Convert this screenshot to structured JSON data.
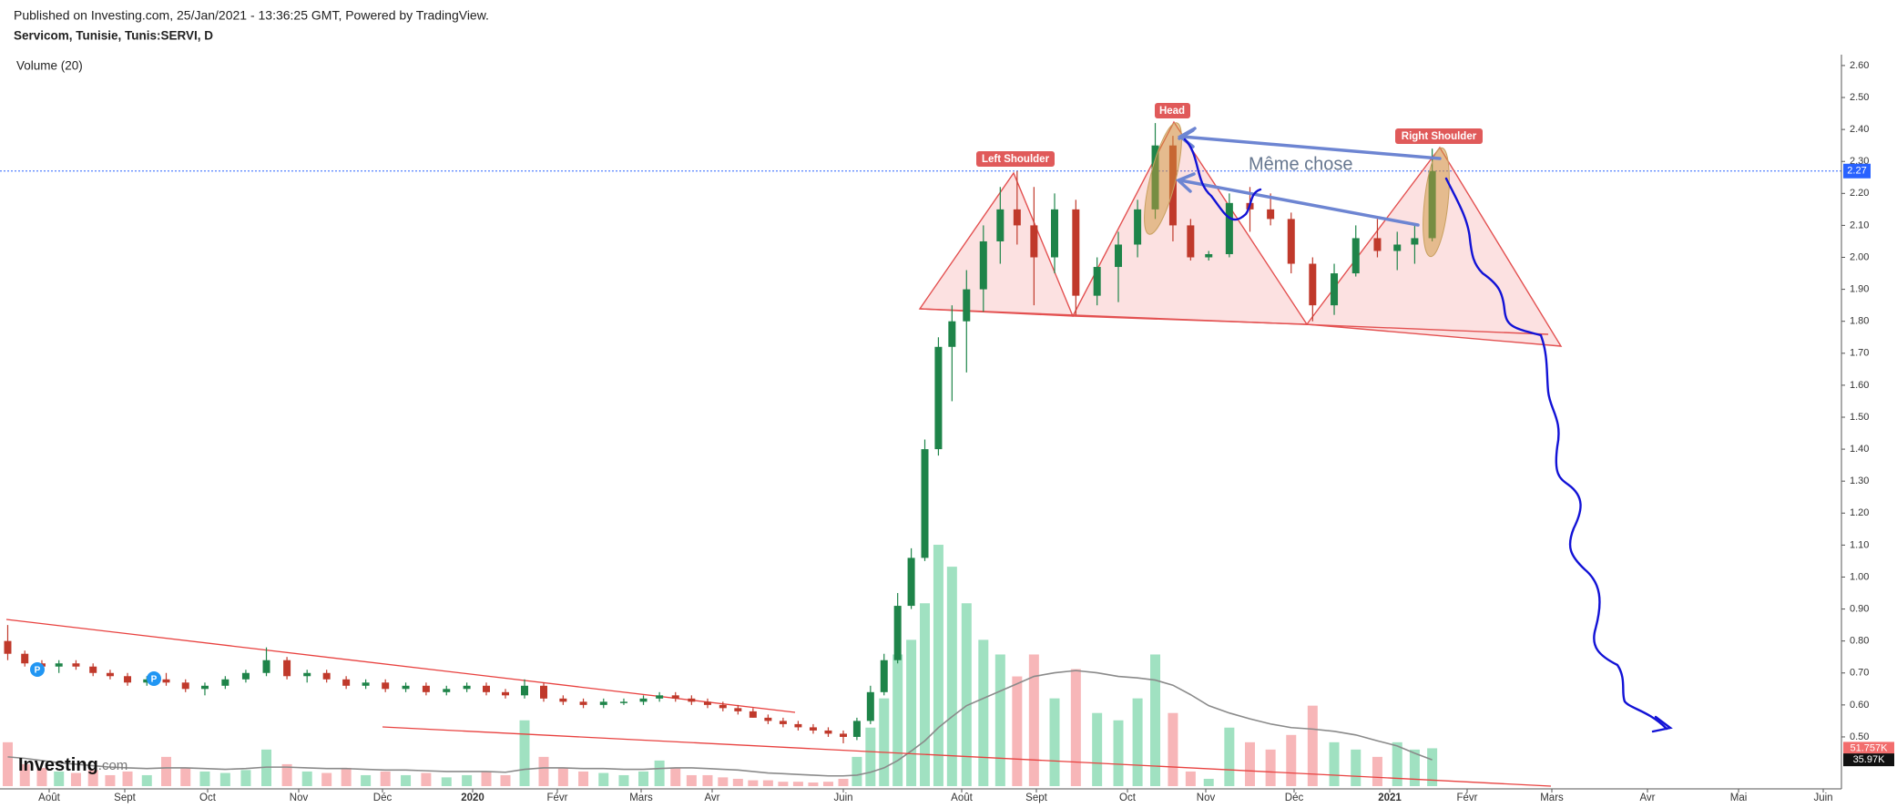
{
  "header": {
    "published": "Published on Investing.com, 25/Jan/2021 - 13:36:25 GMT, Powered by TradingView.",
    "symbol": "Servicom, Tunisie, Tunis:SERVI, D"
  },
  "chart_data": {
    "type": "candlestick",
    "x": [
      "2019-07-15",
      "2019-07-22",
      "2019-07-29",
      "2019-08-05",
      "2019-08-12",
      "2019-08-19",
      "2019-08-26",
      "2019-09-02",
      "2019-09-09",
      "2019-09-16",
      "2019-09-23",
      "2019-09-30",
      "2019-10-07",
      "2019-10-14",
      "2019-10-21",
      "2019-10-28",
      "2019-11-04",
      "2019-11-11",
      "2019-11-18",
      "2019-11-25",
      "2019-12-02",
      "2019-12-09",
      "2019-12-16",
      "2019-12-23",
      "2019-12-30",
      "2020-01-06",
      "2020-01-13",
      "2020-01-20",
      "2020-01-27",
      "2020-02-03",
      "2020-02-10",
      "2020-02-17",
      "2020-02-24",
      "2020-03-02",
      "2020-03-09",
      "2020-03-16",
      "2020-03-23",
      "2020-03-30",
      "2020-04-06",
      "2020-04-13",
      "2020-04-20",
      "2020-04-27",
      "2020-05-04",
      "2020-05-11",
      "2020-05-18",
      "2020-05-25",
      "2020-06-01",
      "2020-06-08",
      "2020-06-15",
      "2020-06-22",
      "2020-06-29",
      "2020-07-06",
      "2020-07-13",
      "2020-07-20",
      "2020-07-27",
      "2020-08-03",
      "2020-08-10",
      "2020-08-17",
      "2020-08-24",
      "2020-08-31",
      "2020-09-07",
      "2020-09-14",
      "2020-09-21",
      "2020-09-28",
      "2020-10-05",
      "2020-10-12",
      "2020-10-19",
      "2020-10-26",
      "2020-11-02",
      "2020-11-09",
      "2020-11-16",
      "2020-11-23",
      "2020-11-30",
      "2020-12-07",
      "2020-12-14",
      "2020-12-21",
      "2020-12-28",
      "2021-01-04",
      "2021-01-11",
      "2021-01-18"
    ],
    "open": [
      0.8,
      0.76,
      0.73,
      0.72,
      0.73,
      0.72,
      0.7,
      0.69,
      0.67,
      0.68,
      0.67,
      0.65,
      0.66,
      0.68,
      0.7,
      0.74,
      0.69,
      0.7,
      0.68,
      0.66,
      0.67,
      0.65,
      0.66,
      0.64,
      0.65,
      0.66,
      0.64,
      0.63,
      0.66,
      0.62,
      0.61,
      0.6,
      0.61,
      0.61,
      0.62,
      0.63,
      0.62,
      0.61,
      0.6,
      0.59,
      0.58,
      0.56,
      0.55,
      0.54,
      0.53,
      0.52,
      0.51,
      0.5,
      0.55,
      0.64,
      0.74,
      0.91,
      1.06,
      1.4,
      1.72,
      1.8,
      1.9,
      2.05,
      2.15,
      2.1,
      2.0,
      2.15,
      1.88,
      1.97,
      2.04,
      2.15,
      2.35,
      2.1,
      2.0,
      2.01,
      2.17,
      2.15,
      2.12,
      1.98,
      1.85,
      1.95,
      2.06,
      2.02,
      2.04,
      2.06
    ],
    "high": [
      0.85,
      0.77,
      0.74,
      0.74,
      0.74,
      0.73,
      0.71,
      0.7,
      0.69,
      0.7,
      0.68,
      0.67,
      0.69,
      0.71,
      0.78,
      0.75,
      0.71,
      0.71,
      0.69,
      0.68,
      0.68,
      0.67,
      0.67,
      0.66,
      0.67,
      0.67,
      0.65,
      0.68,
      0.67,
      0.63,
      0.62,
      0.62,
      0.62,
      0.63,
      0.64,
      0.64,
      0.63,
      0.62,
      0.61,
      0.6,
      0.59,
      0.57,
      0.56,
      0.55,
      0.54,
      0.53,
      0.52,
      0.56,
      0.66,
      0.76,
      0.95,
      1.09,
      1.43,
      1.75,
      1.85,
      1.96,
      2.1,
      2.22,
      2.27,
      2.22,
      2.2,
      2.18,
      2.0,
      2.08,
      2.18,
      2.42,
      2.38,
      2.12,
      2.02,
      2.2,
      2.22,
      2.2,
      2.14,
      2.0,
      1.98,
      2.1,
      2.12,
      2.08,
      2.1,
      2.34
    ],
    "low": [
      0.74,
      0.72,
      0.7,
      0.7,
      0.71,
      0.69,
      0.68,
      0.66,
      0.66,
      0.66,
      0.64,
      0.63,
      0.65,
      0.67,
      0.69,
      0.68,
      0.67,
      0.67,
      0.65,
      0.65,
      0.64,
      0.64,
      0.63,
      0.63,
      0.64,
      0.63,
      0.62,
      0.62,
      0.61,
      0.6,
      0.59,
      0.59,
      0.6,
      0.6,
      0.61,
      0.61,
      0.6,
      0.59,
      0.58,
      0.57,
      0.56,
      0.54,
      0.53,
      0.52,
      0.51,
      0.5,
      0.48,
      0.49,
      0.54,
      0.63,
      0.73,
      0.9,
      1.05,
      1.38,
      1.55,
      1.64,
      1.83,
      1.98,
      2.04,
      1.85,
      1.95,
      1.82,
      1.85,
      1.86,
      2.0,
      2.12,
      2.05,
      1.99,
      1.99,
      2.0,
      2.08,
      2.1,
      1.95,
      1.8,
      1.82,
      1.94,
      2.0,
      1.96,
      1.98,
      2.05
    ],
    "close": [
      0.76,
      0.73,
      0.72,
      0.73,
      0.72,
      0.7,
      0.69,
      0.67,
      0.68,
      0.67,
      0.65,
      0.66,
      0.68,
      0.7,
      0.74,
      0.69,
      0.7,
      0.68,
      0.66,
      0.67,
      0.65,
      0.66,
      0.64,
      0.65,
      0.66,
      0.64,
      0.63,
      0.66,
      0.62,
      0.61,
      0.6,
      0.61,
      0.61,
      0.62,
      0.63,
      0.62,
      0.61,
      0.6,
      0.59,
      0.58,
      0.56,
      0.55,
      0.54,
      0.53,
      0.52,
      0.51,
      0.5,
      0.55,
      0.64,
      0.74,
      0.91,
      1.06,
      1.4,
      1.72,
      1.8,
      1.9,
      2.05,
      2.15,
      2.1,
      2.0,
      2.15,
      1.88,
      1.97,
      2.04,
      2.15,
      2.35,
      2.1,
      2.0,
      2.01,
      2.17,
      2.15,
      2.12,
      1.98,
      1.85,
      1.95,
      2.06,
      2.02,
      2.04,
      2.06,
      2.27
    ],
    "up_color": "#1e8449",
    "down_color": "#c0392b",
    "ylim": [
      0.346,
      2.634
    ],
    "yticks": [
      {
        "value": 0.5,
        "label": "0.50"
      },
      {
        "value": 0.6,
        "label": "0.60"
      },
      {
        "value": 0.7,
        "label": "0.70"
      },
      {
        "value": 0.8,
        "label": "0.80"
      },
      {
        "value": 0.9,
        "label": "0.90"
      },
      {
        "value": 1.0,
        "label": "1.00"
      },
      {
        "value": 1.1,
        "label": "1.10"
      },
      {
        "value": 1.2,
        "label": "1.20"
      },
      {
        "value": 1.3,
        "label": "1.30"
      },
      {
        "value": 1.4,
        "label": "1.40"
      },
      {
        "value": 1.5,
        "label": "1.50"
      },
      {
        "value": 1.6,
        "label": "1.60"
      },
      {
        "value": 1.7,
        "label": "1.70"
      },
      {
        "value": 1.8,
        "label": "1.80"
      },
      {
        "value": 1.9,
        "label": "1.90"
      },
      {
        "value": 2.0,
        "label": "2.00"
      },
      {
        "value": 2.1,
        "label": "2.10"
      },
      {
        "value": 2.2,
        "label": "2.20"
      },
      {
        "value": 2.3,
        "label": "2.30"
      },
      {
        "value": 2.4,
        "label": "2.40"
      },
      {
        "value": 2.5,
        "label": "2.50"
      },
      {
        "value": 2.6,
        "label": "2.60"
      }
    ],
    "xticks": [
      {
        "value": "2019-08-01",
        "label": "Août"
      },
      {
        "value": "2019-09-01",
        "label": "Sept"
      },
      {
        "value": "2019-10-01",
        "label": "Oct"
      },
      {
        "value": "2019-11-01",
        "label": "Nov"
      },
      {
        "value": "2019-12-01",
        "label": "Déc"
      },
      {
        "value": "2020-01-01",
        "label": "2020"
      },
      {
        "value": "2020-02-01",
        "label": "Févr"
      },
      {
        "value": "2020-03-01",
        "label": "Mars"
      },
      {
        "value": "2020-04-01",
        "label": "Avr"
      },
      {
        "value": "2020-06-01",
        "label": "Juin"
      },
      {
        "value": "2020-08-01",
        "label": "Août"
      },
      {
        "value": "2020-09-01",
        "label": "Sept"
      },
      {
        "value": "2020-10-01",
        "label": "Oct"
      },
      {
        "value": "2020-11-01",
        "label": "Nov"
      },
      {
        "value": "2020-12-01",
        "label": "Déc"
      },
      {
        "value": "2021-01-01",
        "label": "2021"
      },
      {
        "value": "2021-02-01",
        "label": "Févr"
      },
      {
        "value": "2021-03-01",
        "label": "Mars"
      },
      {
        "value": "2021-04-01",
        "label": "Avr"
      },
      {
        "value": "2021-05-01",
        "label": "Mai"
      },
      {
        "value": "2021-06-01",
        "label": "Juin"
      }
    ],
    "last_price": 2.27,
    "last_price_color": "#2962ff",
    "volume": {
      "title": "Volume (20)",
      "values": [
        60000,
        30000,
        25000,
        20000,
        18000,
        22000,
        15000,
        20000,
        15000,
        40000,
        25000,
        20000,
        18000,
        22000,
        50000,
        30000,
        20000,
        18000,
        25000,
        15000,
        20000,
        15000,
        18000,
        12000,
        15000,
        20000,
        15000,
        90000,
        40000,
        25000,
        20000,
        18000,
        15000,
        20000,
        35000,
        25000,
        15000,
        15000,
        12000,
        10000,
        8000,
        8000,
        6000,
        6000,
        5000,
        6000,
        10000,
        40000,
        80000,
        120000,
        180000,
        200000,
        250000,
        330000,
        300000,
        250000,
        200000,
        180000,
        150000,
        180000,
        120000,
        160000,
        100000,
        90000,
        120000,
        180000,
        100000,
        20000,
        10000,
        80000,
        60000,
        50000,
        70000,
        110000,
        60000,
        50000,
        40000,
        60000,
        50000,
        51757
      ],
      "ma": [
        40000,
        38000,
        35000,
        32000,
        30000,
        28000,
        26000,
        25000,
        24000,
        25000,
        25000,
        24000,
        23000,
        24000,
        26000,
        26000,
        25000,
        24000,
        24000,
        23000,
        22000,
        22000,
        21000,
        20000,
        20000,
        20000,
        19000,
        23000,
        25000,
        25000,
        24000,
        24000,
        23000,
        23000,
        24000,
        25000,
        25000,
        24000,
        23000,
        22000,
        20000,
        18000,
        17000,
        16000,
        15000,
        14000,
        14000,
        15000,
        19000,
        25000,
        35000,
        48000,
        62000,
        80000,
        95000,
        110000,
        120000,
        130000,
        140000,
        150000,
        155000,
        158000,
        155000,
        150000,
        148000,
        145000,
        138000,
        125000,
        110000,
        100000,
        92000,
        85000,
        80000,
        78000,
        75000,
        70000,
        62000,
        55000,
        45000,
        35970
      ],
      "ylim": [
        0,
        1000000
      ],
      "up_color": "#8fdcb6",
      "down_color": "#f6a9ab",
      "ma_color": "#8a8a8a",
      "last_label": {
        "value": 51757,
        "label": "51.757K"
      },
      "ma_label": {
        "value": 35970,
        "label": "35.97K"
      }
    },
    "annotations": {
      "left_shoulder": "Left Shoulder",
      "head": "Head",
      "right_shoulder": "Right Shoulder",
      "note": "Même chose"
    },
    "dividend_markers": [
      "P",
      "P"
    ]
  },
  "logo": {
    "name": "Investing",
    "suffix": ".com"
  }
}
